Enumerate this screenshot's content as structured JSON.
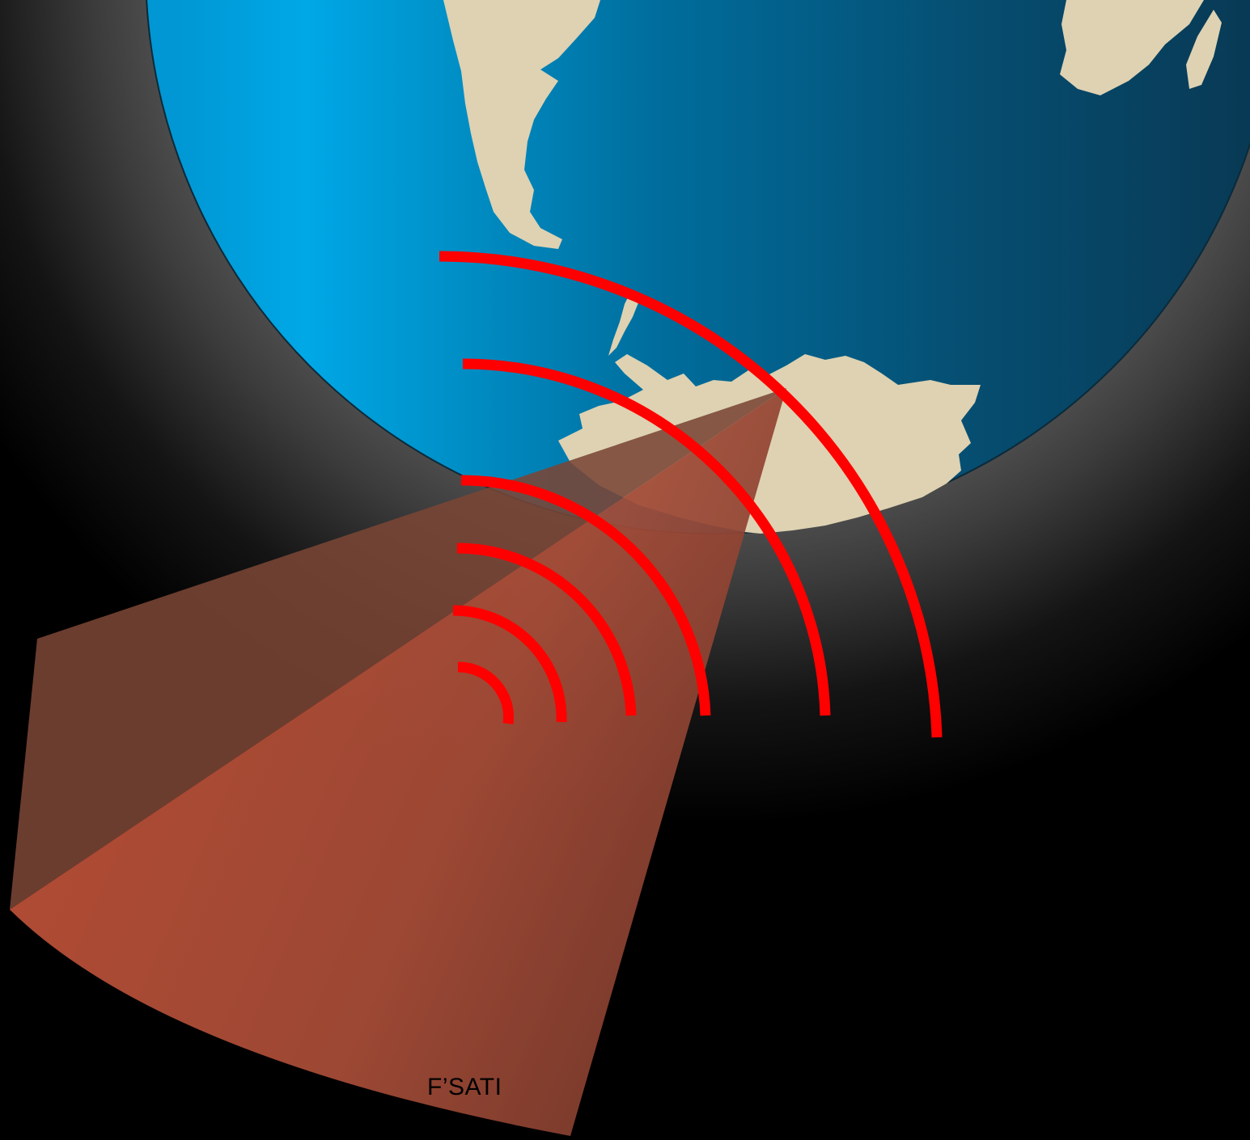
{
  "diagram": {
    "label": "F’SATI",
    "colors": {
      "background": "#000000",
      "glow": "#5a5a5a",
      "ocean_light": "#00a8e6",
      "ocean_dark": "#083a55",
      "land": "#ded2b2",
      "beam": "#e8583a",
      "signal_waves": "#ff0000"
    },
    "icons": [
      "globe-icon",
      "antarctica-landmass",
      "south-america-landmass",
      "africa-landmass",
      "signal-waves-icon",
      "coverage-beam"
    ]
  }
}
